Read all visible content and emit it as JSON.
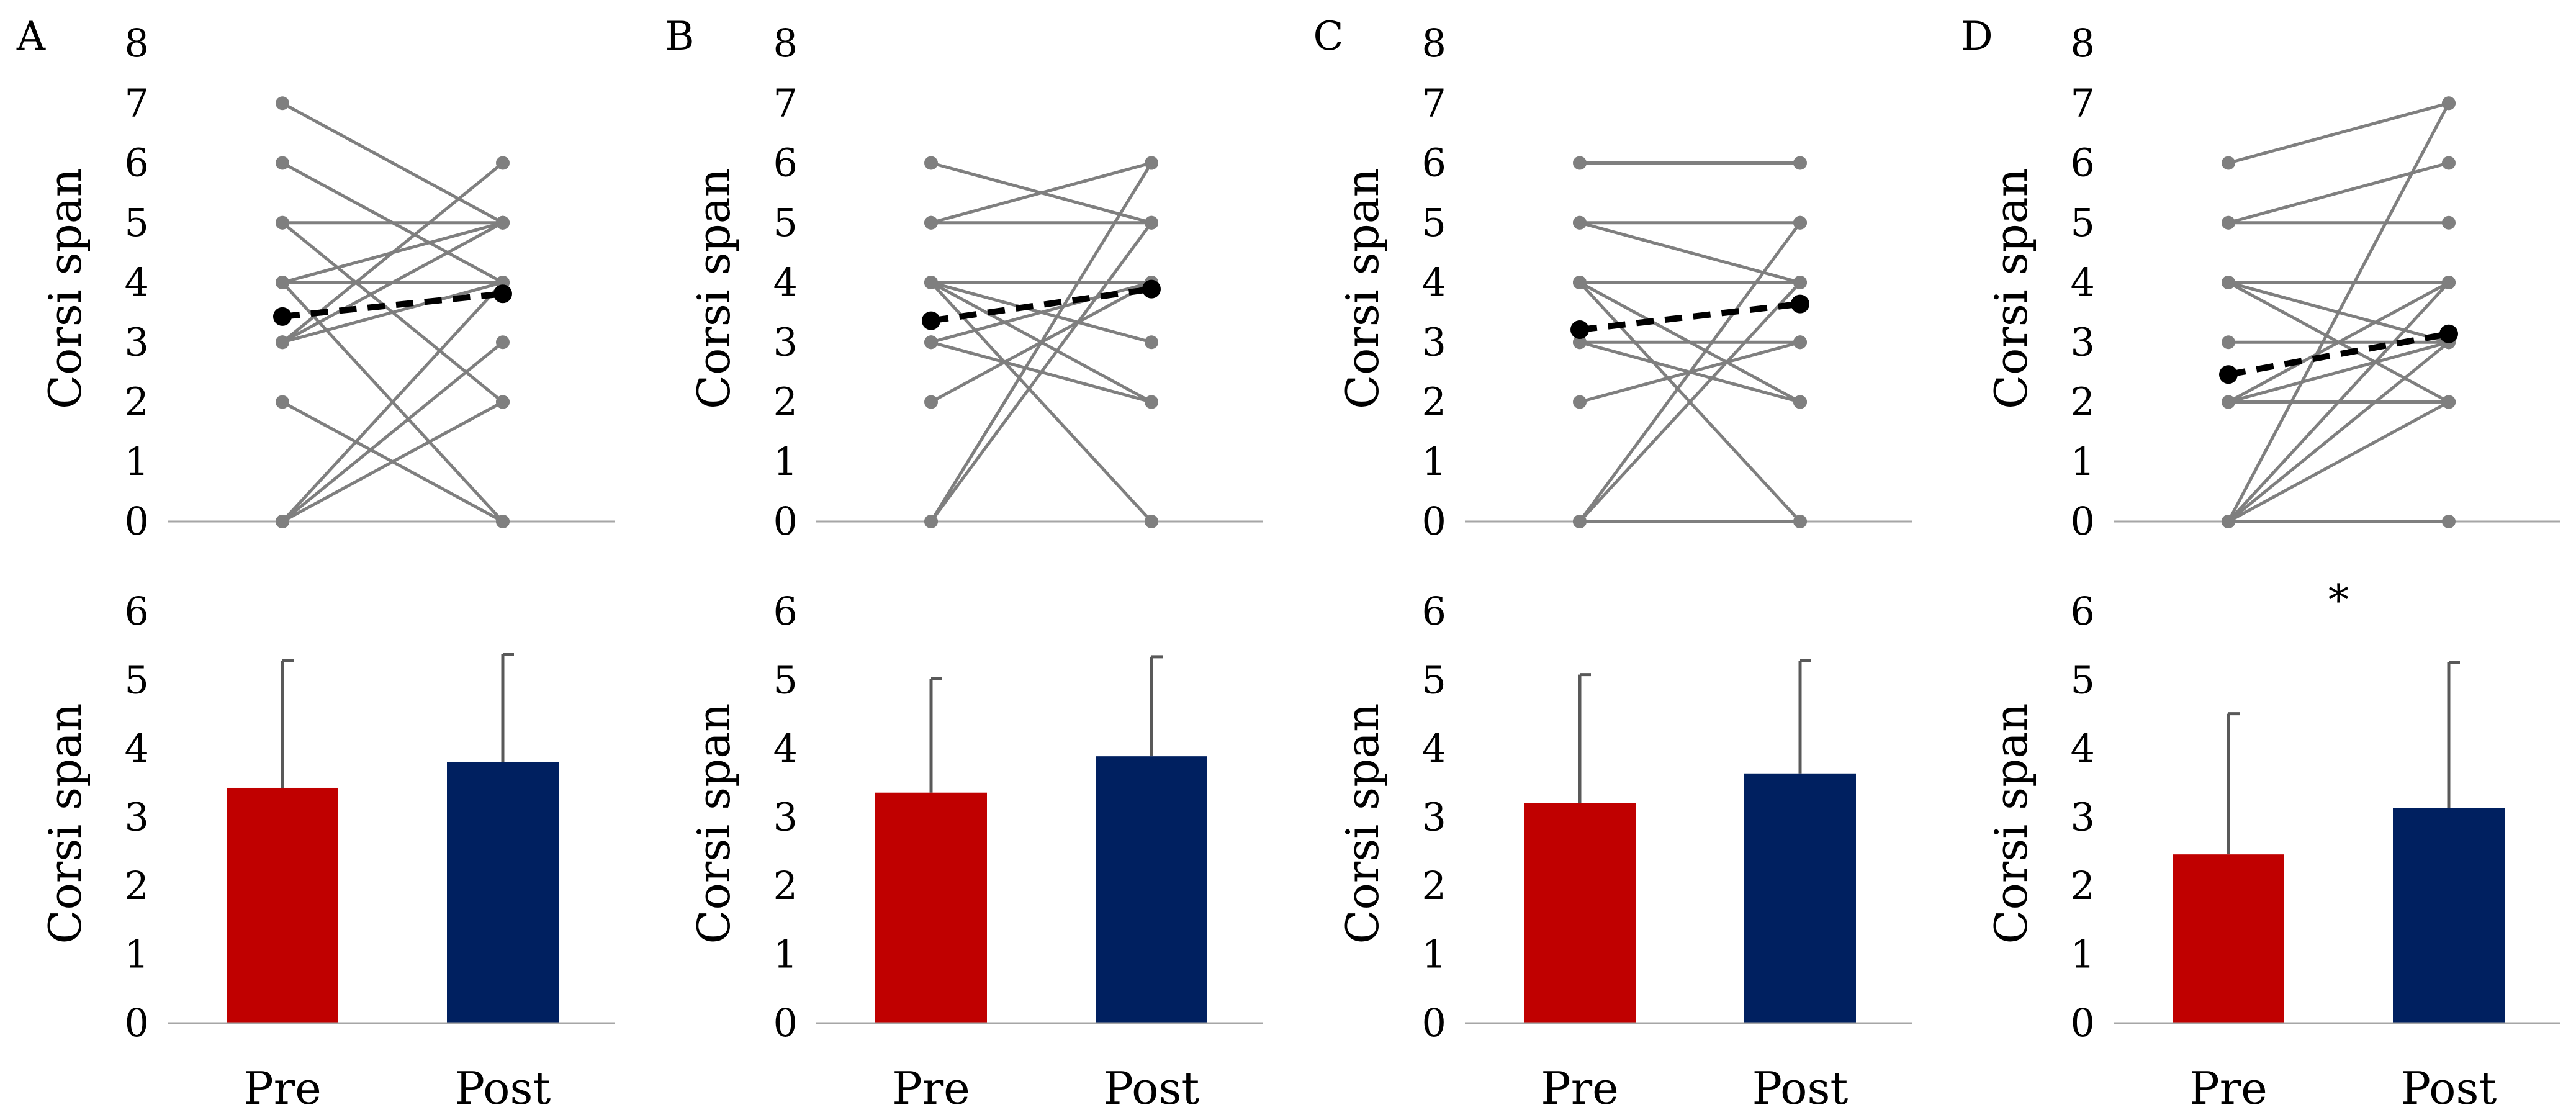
{
  "colors": {
    "subject_line": "#7f7f7f",
    "mean_line": "#000000",
    "pre_bar": "#c00000",
    "post_bar": "#002060",
    "error_bar": "#595959",
    "axis": "#a6a6a6"
  },
  "chart_data": [
    {
      "panel": "A",
      "spaghetti": {
        "type": "line",
        "ylabel": "Corsi span",
        "ylim": [
          0,
          8
        ],
        "yticks": [
          "0",
          "1",
          "2",
          "3",
          "4",
          "5",
          "6",
          "7",
          "8"
        ],
        "pairs": [
          [
            7,
            5
          ],
          [
            6,
            4
          ],
          [
            5,
            5
          ],
          [
            5,
            2
          ],
          [
            4,
            5
          ],
          [
            4,
            4
          ],
          [
            4,
            0
          ],
          [
            3,
            6
          ],
          [
            3,
            5
          ],
          [
            3,
            4
          ],
          [
            2,
            0
          ],
          [
            0,
            2
          ],
          [
            0,
            3
          ],
          [
            0,
            4
          ]
        ],
        "mean": [
          3.43,
          3.81
        ]
      },
      "bar": {
        "type": "bar",
        "ylabel": "Corsi span",
        "ylim": [
          0,
          6
        ],
        "yticks": [
          "0",
          "1",
          "2",
          "3",
          "4",
          "5",
          "6"
        ],
        "categories": [
          "Pre",
          "Post"
        ],
        "values": [
          3.43,
          3.81
        ],
        "errors": [
          1.85,
          1.57
        ],
        "annotation": ""
      }
    },
    {
      "panel": "B",
      "spaghetti": {
        "type": "line",
        "ylabel": "Corsi span",
        "ylim": [
          0,
          8
        ],
        "yticks": [
          "0",
          "1",
          "2",
          "3",
          "4",
          "5",
          "6",
          "7",
          "8"
        ],
        "pairs": [
          [
            6,
            5
          ],
          [
            5,
            6
          ],
          [
            5,
            5
          ],
          [
            4,
            4
          ],
          [
            4,
            2
          ],
          [
            4,
            0
          ],
          [
            4,
            3
          ],
          [
            3,
            4
          ],
          [
            3,
            2
          ],
          [
            2,
            4
          ],
          [
            0,
            6
          ],
          [
            0,
            5
          ]
        ],
        "mean": [
          3.36,
          3.89
        ]
      },
      "bar": {
        "type": "bar",
        "ylabel": "Corsi span",
        "ylim": [
          0,
          6
        ],
        "yticks": [
          "0",
          "1",
          "2",
          "3",
          "4",
          "5",
          "6"
        ],
        "categories": [
          "Pre",
          "Post"
        ],
        "values": [
          3.36,
          3.89
        ],
        "errors": [
          1.66,
          1.45
        ],
        "annotation": ""
      }
    },
    {
      "panel": "C",
      "spaghetti": {
        "type": "line",
        "ylabel": "Corsi span",
        "ylim": [
          0,
          8
        ],
        "yticks": [
          "0",
          "1",
          "2",
          "3",
          "4",
          "5",
          "6",
          "7",
          "8"
        ],
        "pairs": [
          [
            6,
            6
          ],
          [
            5,
            5
          ],
          [
            5,
            4
          ],
          [
            4,
            4
          ],
          [
            4,
            2
          ],
          [
            4,
            0
          ],
          [
            3,
            3
          ],
          [
            3,
            2
          ],
          [
            2,
            3
          ],
          [
            0,
            5
          ],
          [
            0,
            4
          ],
          [
            0,
            0
          ]
        ],
        "mean": [
          3.21,
          3.64
        ]
      },
      "bar": {
        "type": "bar",
        "ylabel": "Corsi span",
        "ylim": [
          0,
          6
        ],
        "yticks": [
          "0",
          "1",
          "2",
          "3",
          "4",
          "5",
          "6"
        ],
        "categories": [
          "Pre",
          "Post"
        ],
        "values": [
          3.21,
          3.64
        ],
        "errors": [
          1.87,
          1.64
        ],
        "annotation": ""
      }
    },
    {
      "panel": "D",
      "spaghetti": {
        "type": "line",
        "ylabel": "Corsi span",
        "ylim": [
          0,
          8
        ],
        "yticks": [
          "0",
          "1",
          "2",
          "3",
          "4",
          "5",
          "6",
          "7",
          "8"
        ],
        "pairs": [
          [
            6,
            7
          ],
          [
            5,
            6
          ],
          [
            5,
            5
          ],
          [
            4,
            4
          ],
          [
            4,
            3
          ],
          [
            4,
            2
          ],
          [
            3,
            3
          ],
          [
            2,
            4
          ],
          [
            2,
            3
          ],
          [
            2,
            2
          ],
          [
            0,
            7
          ],
          [
            0,
            4
          ],
          [
            0,
            3
          ],
          [
            0,
            2
          ],
          [
            0,
            0
          ]
        ],
        "mean": [
          2.46,
          3.14
        ]
      },
      "bar": {
        "type": "bar",
        "ylabel": "Corsi span",
        "ylim": [
          0,
          6
        ],
        "yticks": [
          "0",
          "1",
          "2",
          "3",
          "4",
          "5",
          "6"
        ],
        "categories": [
          "Pre",
          "Post"
        ],
        "values": [
          2.46,
          3.14
        ],
        "errors": [
          2.05,
          2.12
        ],
        "annotation": "*"
      }
    }
  ]
}
